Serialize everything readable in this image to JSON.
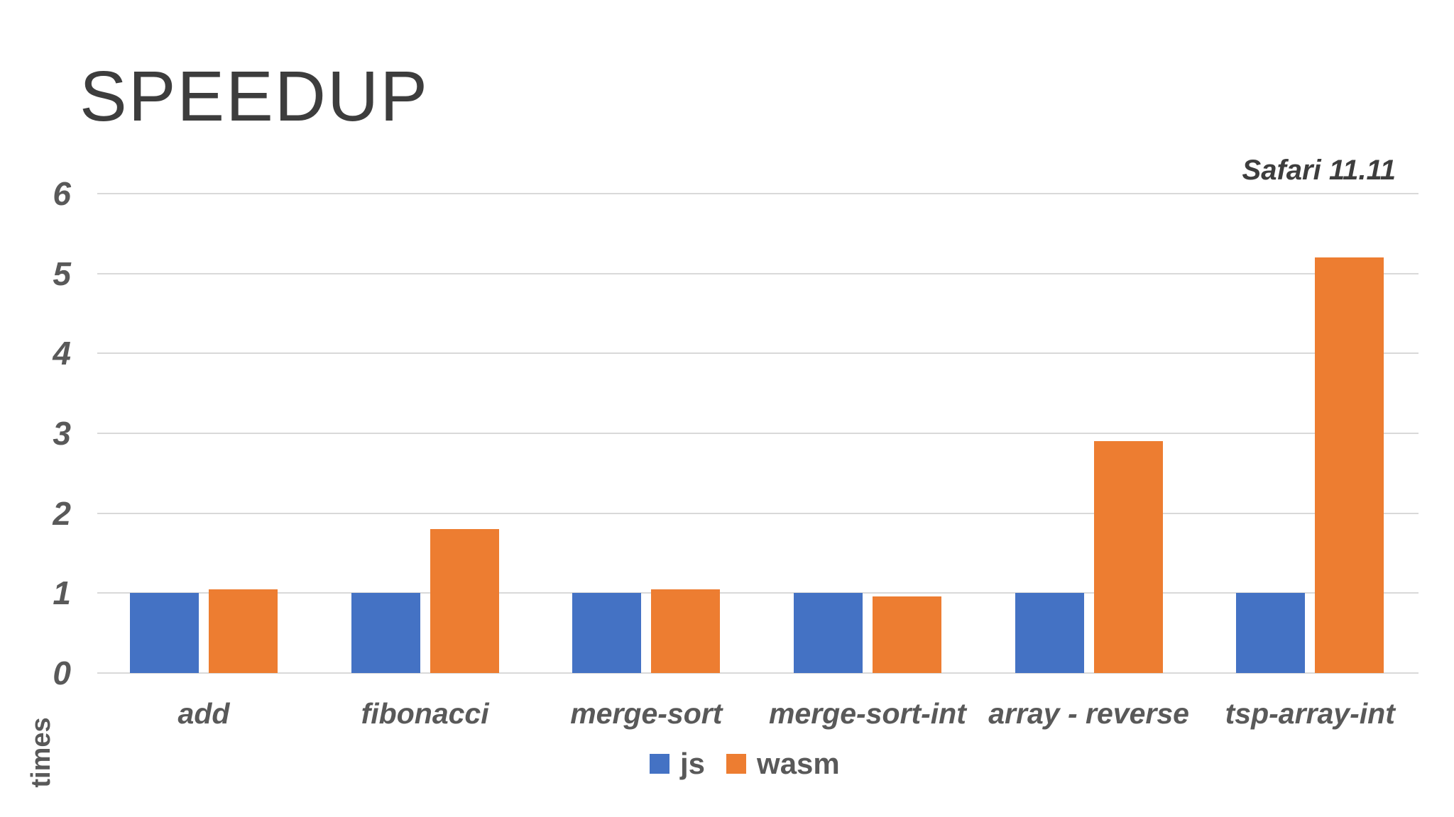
{
  "page": {
    "background": "#FFFFFF"
  },
  "chart_data": {
    "type": "bar",
    "title": "SPEEDUP",
    "annotation": "Safari 11.11",
    "xlabel": "",
    "ylabel": "times",
    "ylim": [
      0,
      6
    ],
    "yticks": [
      0,
      1,
      2,
      3,
      4,
      5,
      6
    ],
    "grid": true,
    "legend_position": "bottom",
    "categories": [
      "add",
      "fibonacci",
      "merge-sort",
      "merge-sort-int",
      "array - reverse",
      "tsp-array-int"
    ],
    "series": [
      {
        "name": "js",
        "color": "#4472C4",
        "values": [
          1.0,
          1.0,
          1.0,
          1.0,
          1.0,
          1.0
        ]
      },
      {
        "name": "wasm",
        "color": "#ED7D31",
        "values": [
          1.05,
          1.8,
          1.05,
          0.96,
          2.9,
          5.2
        ]
      }
    ],
    "colors": {
      "gridline": "#D9D9D9",
      "axis_text": "#595959",
      "title_text": "#3D3D3D"
    }
  }
}
